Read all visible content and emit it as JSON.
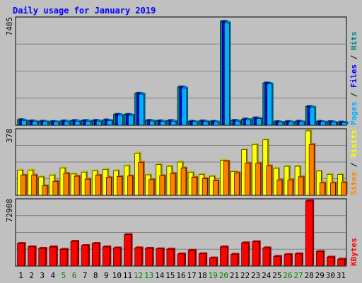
{
  "chart_data": [
    {
      "type": "bar",
      "title": "Daily usage for January 2019",
      "y_max_label": "7405",
      "ylim": [
        0,
        7405
      ],
      "categories": [
        "1",
        "2",
        "3",
        "4",
        "5",
        "6",
        "7",
        "8",
        "9",
        "10",
        "11",
        "12",
        "13",
        "14",
        "15",
        "16",
        "17",
        "18",
        "19",
        "20",
        "21",
        "22",
        "23",
        "24",
        "25",
        "26",
        "27",
        "28",
        "29",
        "30",
        "31"
      ],
      "weekend_categories": [
        "5",
        "6",
        "12",
        "13",
        "19",
        "20",
        "26",
        "27"
      ],
      "series": [
        {
          "name": "Hits",
          "color": "#008080",
          "values": [
            390,
            300,
            280,
            260,
            300,
            330,
            330,
            340,
            370,
            760,
            750,
            2230,
            340,
            310,
            330,
            2670,
            280,
            300,
            270,
            7250,
            340,
            430,
            510,
            2950,
            250,
            260,
            280,
            1310,
            270,
            250,
            220
          ]
        },
        {
          "name": "Files",
          "color": "#0000ff",
          "values": [
            360,
            270,
            260,
            240,
            270,
            300,
            300,
            310,
            340,
            730,
            720,
            2200,
            310,
            280,
            300,
            2640,
            250,
            270,
            240,
            7200,
            310,
            400,
            480,
            2920,
            220,
            230,
            250,
            1280,
            240,
            220,
            190
          ]
        },
        {
          "name": "Pages",
          "color": "#00b0ff",
          "values": [
            330,
            250,
            240,
            220,
            250,
            280,
            280,
            290,
            320,
            700,
            690,
            2170,
            290,
            260,
            280,
            2600,
            230,
            250,
            220,
            7150,
            290,
            380,
            460,
            2880,
            200,
            210,
            230,
            1250,
            220,
            200,
            170
          ]
        }
      ],
      "side_label_parts": [
        {
          "text": "Pages",
          "color": "#00b0ff"
        },
        {
          "text": " / ",
          "color": "#000000"
        },
        {
          "text": "Files",
          "color": "#0000ff"
        },
        {
          "text": " / ",
          "color": "#000000"
        },
        {
          "text": "Hits",
          "color": "#008080"
        }
      ]
    },
    {
      "type": "bar",
      "y_max_label": "378",
      "ylim": [
        0,
        378
      ],
      "series": [
        {
          "name": "Visits",
          "color": "#ffff00",
          "values": [
            148,
            148,
            108,
            118,
            160,
            125,
            136,
            143,
            152,
            145,
            173,
            247,
            120,
            180,
            170,
            195,
            135,
            122,
            112,
            205,
            140,
            268,
            298,
            325,
            158,
            170,
            170,
            378,
            142,
            122,
            122
          ]
        },
        {
          "name": "Sites",
          "color": "#ff8000",
          "values": [
            118,
            118,
            55,
            82,
            128,
            112,
            95,
            118,
            105,
            110,
            113,
            193,
            92,
            115,
            128,
            160,
            105,
            98,
            85,
            200,
            132,
            188,
            188,
            172,
            90,
            90,
            108,
            298,
            72,
            72,
            75
          ]
        }
      ],
      "side_label_parts": [
        {
          "text": "Sites",
          "color": "#ff8000"
        },
        {
          "text": " / ",
          "color": "#000000"
        },
        {
          "text": "Visits",
          "color": "#ffff00"
        }
      ]
    },
    {
      "type": "bar",
      "y_max_label": "72908",
      "ylim": [
        0,
        72908
      ],
      "series": [
        {
          "name": "KBytes",
          "color": "#ff0000",
          "values": [
            25300,
            21500,
            19800,
            21400,
            18700,
            27600,
            23000,
            25300,
            21400,
            20200,
            35100,
            20300,
            19800,
            19200,
            18900,
            13500,
            17600,
            13700,
            9000,
            21400,
            13200,
            26000,
            27100,
            20300,
            10800,
            12900,
            13600,
            72908,
            16200,
            9900,
            7600
          ]
        }
      ],
      "side_label_parts": [
        {
          "text": "KBytes",
          "color": "#ff0000"
        }
      ]
    }
  ]
}
